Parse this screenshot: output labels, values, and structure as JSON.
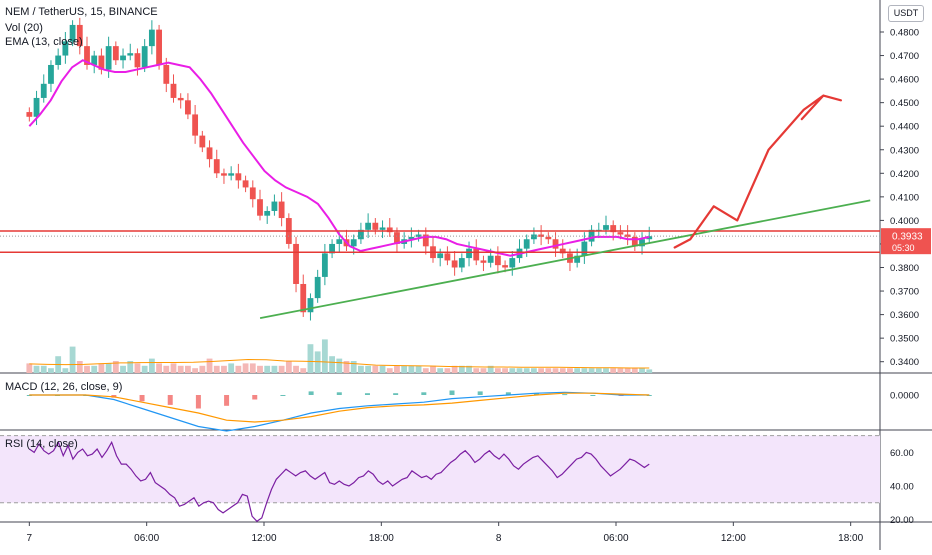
{
  "header": {
    "symbol_line": "NEM / TetherUS, 15, BINANCE",
    "vol_label": "Vol (20)",
    "ema_label": "EMA (13, close)",
    "macd_label": "MACD (12, 26, close, 9)",
    "rsi_label": "RSI (14, close)"
  },
  "price_scale": {
    "unit": "USDT",
    "last_price": "0.3933",
    "countdown": "05:30"
  },
  "colors": {
    "up": "#26a69a",
    "down": "#ef5350",
    "ema": "#e91ee6",
    "drawing_red": "#e53935",
    "trend_green": "#4caf50",
    "macd_line": "#2196f3",
    "signal_line": "#ff9800",
    "rsi_line": "#7b1fa2",
    "rsi_band": "#f3e5fb"
  },
  "chart_data": [
    {
      "type": "candlestick",
      "title": "NEM / TetherUS, 15, BINANCE",
      "ylabel": "USDT",
      "ylim": [
        0.335,
        0.487
      ],
      "yticks": [
        "0.4800",
        "0.4700",
        "0.4600",
        "0.4500",
        "0.4400",
        "0.4300",
        "0.4200",
        "0.4100",
        "0.4000",
        "0.3900",
        "0.3800",
        "0.3700",
        "0.3600",
        "0.3500",
        "0.3400"
      ],
      "xticks": [
        "7",
        "06:00",
        "12:00",
        "18:00",
        "8",
        "06:00",
        "12:00",
        "18:00"
      ],
      "xrange_hours": [
        -1.5,
        43.5
      ],
      "close_series": [
        0.444,
        0.452,
        0.458,
        0.466,
        0.47,
        0.476,
        0.483,
        0.474,
        0.466,
        0.47,
        0.464,
        0.474,
        0.468,
        0.47,
        0.471,
        0.465,
        0.474,
        0.481,
        0.466,
        0.458,
        0.452,
        0.451,
        0.445,
        0.436,
        0.431,
        0.426,
        0.42,
        0.419,
        0.42,
        0.417,
        0.414,
        0.409,
        0.402,
        0.404,
        0.408,
        0.401,
        0.39,
        0.373,
        0.361,
        0.367,
        0.376,
        0.386,
        0.39,
        0.392,
        0.389,
        0.392,
        0.396,
        0.399,
        0.396,
        0.397,
        0.395,
        0.39,
        0.392,
        0.393,
        0.394,
        0.389,
        0.384,
        0.386,
        0.383,
        0.38,
        0.384,
        0.388,
        0.383,
        0.382,
        0.385,
        0.381,
        0.38,
        0.384,
        0.388,
        0.392,
        0.394,
        0.393,
        0.392,
        0.388,
        0.386,
        0.382,
        0.385,
        0.391,
        0.396,
        0.396,
        0.398,
        0.395,
        0.394,
        0.393,
        0.389,
        0.392,
        0.3933
      ],
      "ema13": [
        0.44,
        0.445,
        0.451,
        0.459,
        0.465,
        0.468,
        0.466,
        0.464,
        0.463,
        0.463,
        0.464,
        0.465,
        0.466,
        0.467,
        0.466,
        0.465,
        0.46,
        0.454,
        0.447,
        0.44,
        0.433,
        0.427,
        0.421,
        0.417,
        0.414,
        0.412,
        0.41,
        0.407,
        0.401,
        0.394,
        0.389,
        0.387,
        0.388,
        0.389,
        0.39,
        0.391,
        0.392,
        0.393,
        0.393,
        0.392,
        0.39,
        0.389,
        0.388,
        0.387,
        0.386,
        0.385,
        0.386,
        0.387,
        0.388,
        0.389,
        0.39,
        0.391,
        0.392,
        0.393,
        0.393,
        0.393,
        0.392,
        0.392,
        0.393
      ],
      "horizontal_levels": [
        0.3955,
        0.3865
      ],
      "trendline": {
        "from": [
          11.8,
          0.3585
        ],
        "to": [
          43.0,
          0.4085
        ]
      },
      "projection_path_hours_prices": [
        [
          33.0,
          0.3885
        ],
        [
          33.8,
          0.392
        ],
        [
          35.0,
          0.406
        ],
        [
          36.2,
          0.4
        ],
        [
          37.8,
          0.43
        ],
        [
          39.6,
          0.447
        ],
        [
          40.6,
          0.453
        ],
        [
          39.5,
          0.443
        ],
        [
          40.6,
          0.453
        ],
        [
          41.5,
          0.451
        ]
      ],
      "volume_ylim": [
        0,
        25
      ],
      "volume": [
        4,
        3,
        3,
        2,
        7,
        2,
        11,
        5,
        3,
        3,
        4,
        4,
        5,
        3,
        5,
        4,
        3,
        6,
        4,
        3,
        4,
        3,
        3,
        2,
        3,
        6,
        3,
        3,
        4,
        3,
        4,
        4,
        3,
        3,
        3,
        3,
        5,
        3,
        2,
        12,
        9,
        14,
        7,
        6,
        5,
        5,
        3,
        3,
        3,
        3,
        2,
        3,
        3,
        3,
        3,
        2,
        3,
        2,
        2,
        3,
        3,
        3,
        2,
        2,
        3,
        2,
        2,
        2,
        2,
        2,
        2,
        2,
        2,
        2,
        2,
        2,
        2,
        2,
        2,
        2,
        2,
        2,
        2,
        2,
        2,
        2,
        1.5
      ],
      "volume_ma": [
        3.8,
        3.6,
        3.5,
        3.6,
        3.9,
        4.2,
        4.3,
        4.4,
        4.4,
        4.5,
        4.8,
        5.2,
        5.6,
        5.5,
        5.0,
        4.9,
        4.7,
        4.3,
        3.8,
        3.3,
        3.1,
        3.0,
        2.9,
        2.7,
        2.6,
        2.5,
        2.5,
        2.4,
        2.4,
        2.4,
        2.3,
        2.2,
        2.2,
        2.1,
        2.1
      ]
    },
    {
      "type": "line",
      "title": "MACD (12, 26, close, 9)",
      "yticks": [
        "0.0000"
      ],
      "series": [
        {
          "name": "MACD",
          "values": [
            0.0,
            0.0,
            0.0,
            -0.0005,
            -0.0015,
            -0.0025,
            -0.0035,
            -0.004,
            -0.0035,
            -0.0028,
            -0.002,
            -0.0015,
            -0.0012,
            -0.001,
            -0.0008,
            -0.0004,
            -0.0002,
            0.0,
            0.0002,
            0.0003,
            0.0002,
            0.0,
            0.0
          ]
        },
        {
          "name": "Signal",
          "values": [
            0.0,
            0.0,
            0.0,
            -0.0002,
            -0.0008,
            -0.0014,
            -0.002,
            -0.0028,
            -0.003,
            -0.0028,
            -0.0024,
            -0.0018,
            -0.0014,
            -0.0012,
            -0.0011,
            -0.0009,
            -0.0006,
            -0.0003,
            0.0,
            0.0002,
            0.0002,
            0.0001,
            0.0
          ]
        }
      ],
      "ylim": [
        -0.0045,
        0.0015
      ]
    },
    {
      "type": "line",
      "title": "RSI (14, close)",
      "yticks": [
        "60.00",
        "40.00",
        "20.00"
      ],
      "ylim": [
        17,
        73
      ],
      "band": [
        30,
        70
      ],
      "series": [
        {
          "name": "RSI",
          "values": [
            62,
            60,
            65,
            61,
            59,
            61,
            66,
            58,
            64,
            56,
            60,
            62,
            58,
            59,
            62,
            57,
            61,
            66,
            58,
            53,
            53,
            50,
            46,
            43,
            44,
            48,
            42,
            40,
            38,
            35,
            33,
            28,
            29,
            31,
            33,
            28,
            30,
            31,
            30,
            26,
            24,
            26,
            28,
            30,
            35,
            34,
            22,
            19,
            21,
            30,
            38,
            44,
            47,
            50,
            48,
            46,
            48,
            49,
            46,
            44,
            46,
            48,
            42,
            41,
            43,
            41,
            40,
            42,
            45,
            46,
            49,
            47,
            43,
            41,
            43,
            40,
            42,
            44,
            45,
            49,
            47,
            45,
            46,
            44,
            47,
            48,
            51,
            54,
            56,
            59,
            61,
            58,
            54,
            56,
            59,
            61,
            58,
            56,
            59,
            56,
            52,
            50,
            53,
            55,
            57,
            58,
            55,
            52,
            49,
            45,
            47,
            50,
            53,
            56,
            57,
            60,
            59,
            56,
            52,
            49,
            46,
            48,
            50,
            53,
            56,
            55,
            53,
            51,
            53
          ]
        }
      ]
    }
  ]
}
